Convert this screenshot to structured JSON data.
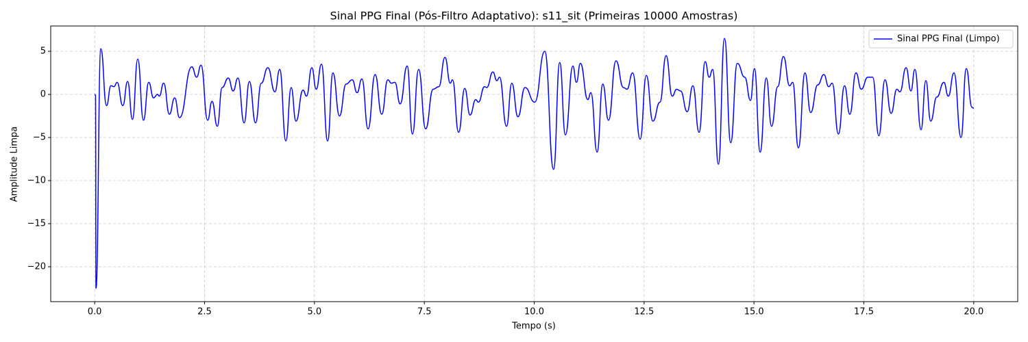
{
  "chart_data": {
    "type": "line",
    "title": "Sinal PPG Final (Pós-Filtro Adaptativo): s11_sit (Primeiras 10000 Amostras)",
    "x_label": "Tempo (s)",
    "y_label": "Amplitude Limpa",
    "x": [
      0,
      0.02,
      0.03,
      0.14,
      0.27,
      0.37,
      0.44,
      0.51,
      0.64,
      0.75,
      0.86,
      0.98,
      1.11,
      1.23,
      1.34,
      1.43,
      1.47,
      1.57,
      1.7,
      1.82,
      1.93,
      2.21,
      2.32,
      2.42,
      2.57,
      2.67,
      2.79,
      2.9,
      3.04,
      3.15,
      3.26,
      3.4,
      3.52,
      3.66,
      3.79,
      3.94,
      4.1,
      4.21,
      4.35,
      4.47,
      4.58,
      4.74,
      4.82,
      4.94,
      5.04,
      5.16,
      5.3,
      5.42,
      5.57,
      5.72,
      5.86,
      5.97,
      6.08,
      6.22,
      6.38,
      6.53,
      6.67,
      6.75,
      6.83,
      6.95,
      7.11,
      7.23,
      7.37,
      7.53,
      7.7,
      7.83,
      7.97,
      8.09,
      8.14,
      8.28,
      8.42,
      8.54,
      8.67,
      8.73,
      8.87,
      8.92,
      9.06,
      9.15,
      9.21,
      9.37,
      9.49,
      9.63,
      9.79,
      10.01,
      10.24,
      10.44,
      10.58,
      10.71,
      10.88,
      10.96,
      11.05,
      11.22,
      11.29,
      11.43,
      11.56,
      11.69,
      11.86,
      12.03,
      12.11,
      12.24,
      12.41,
      12.55,
      12.7,
      12.86,
      13.0,
      13.14,
      13.24,
      13.33,
      13.48,
      13.61,
      13.75,
      13.89,
      13.98,
      14.06,
      14.19,
      14.33,
      14.47,
      14.62,
      14.79,
      14.92,
      15.01,
      15.14,
      15.28,
      15.4,
      15.54,
      15.67,
      15.81,
      15.88,
      16.01,
      16.16,
      16.29,
      16.45,
      16.59,
      16.7,
      16.78,
      16.92,
      17.06,
      17.18,
      17.32,
      17.44,
      17.59,
      17.7,
      17.84,
      17.98,
      18.12,
      18.25,
      18.32,
      18.46,
      18.57,
      18.66,
      18.8,
      18.91,
      19.02,
      19.16,
      19.32,
      19.42,
      19.55,
      19.71,
      19.83,
      19.96,
      20.0
    ],
    "series": [
      {
        "name": "Sinal PPG Final (Limpo)",
        "color": "#0000ff",
        "values": [
          0,
          -0.1,
          -22.5,
          5.3,
          -1.3,
          1.0,
          0.9,
          1.4,
          -1.3,
          1.5,
          -2.9,
          4.1,
          -3.0,
          1.4,
          -0.4,
          0,
          -0.2,
          1.3,
          -2.3,
          -0.4,
          -2.7,
          3.2,
          2.0,
          3.4,
          -3.0,
          -0.8,
          -3.7,
          0.8,
          1.9,
          0.4,
          1.9,
          -3.3,
          1.5,
          -3.3,
          1.3,
          3.1,
          0.3,
          2.9,
          -5.4,
          0.8,
          -3.1,
          0.5,
          -0.2,
          3.1,
          0.6,
          3.5,
          -5.4,
          2.5,
          -2.5,
          1.2,
          1.7,
          0.2,
          1.8,
          -4.0,
          2.3,
          -2.3,
          1.7,
          1.3,
          1.4,
          -1.1,
          3.3,
          -4.6,
          2.9,
          -4.0,
          0.6,
          0.9,
          4.3,
          1.3,
          1.7,
          -4.4,
          0.7,
          -2.4,
          -0.6,
          -0.9,
          0.9,
          0.8,
          2.6,
          1.6,
          2.0,
          -3.7,
          1.3,
          -2.6,
          0.8,
          -0.9,
          5.0,
          -8.7,
          3.7,
          -4.7,
          3.3,
          1.4,
          3.6,
          -0.6,
          0.2,
          -6.7,
          1.2,
          -3.0,
          3.9,
          0.8,
          0.6,
          2.5,
          -5.2,
          2.2,
          -3.1,
          -0.9,
          4.5,
          -0.2,
          0.6,
          0.4,
          -2.0,
          1.0,
          -4.4,
          3.8,
          2.0,
          2.9,
          -8.1,
          6.5,
          -5.6,
          3.6,
          2.0,
          -0.7,
          3.0,
          -6.7,
          1.9,
          -3.7,
          0.9,
          4.4,
          1.0,
          1.4,
          -6.2,
          2.5,
          -2.1,
          1.1,
          2.3,
          0.9,
          1.3,
          -4.6,
          1.0,
          -2.3,
          2.5,
          0.6,
          2.0,
          2.0,
          -4.8,
          1.7,
          -2.2,
          0.6,
          0.3,
          3.1,
          0.4,
          2.9,
          -4.1,
          1.6,
          -3.1,
          -0.3,
          1.4,
          -0.2,
          2.5,
          -5.0,
          3.0,
          -1.5,
          -1.6
        ]
      }
    ],
    "xlim": [
      -1.0,
      21.0
    ],
    "ylim": [
      -24.05,
      7.94
    ],
    "xticks": [
      {
        "value": 0,
        "label": "0.0"
      },
      2.5,
      {
        "value": 5,
        "label": "5.0"
      },
      7.5,
      {
        "value": 10,
        "label": "10.0"
      },
      12.5,
      {
        "value": 15,
        "label": "15.0"
      },
      17.5,
      {
        "value": 20,
        "label": "20.0"
      }
    ],
    "yticks": [
      {
        "value": -20,
        "label": "−20"
      },
      {
        "value": -15,
        "label": "−15"
      },
      {
        "value": -10,
        "label": "−10"
      },
      {
        "value": -5,
        "label": "−5"
      },
      0,
      5
    ],
    "grid": true,
    "legend": "upper right"
  }
}
